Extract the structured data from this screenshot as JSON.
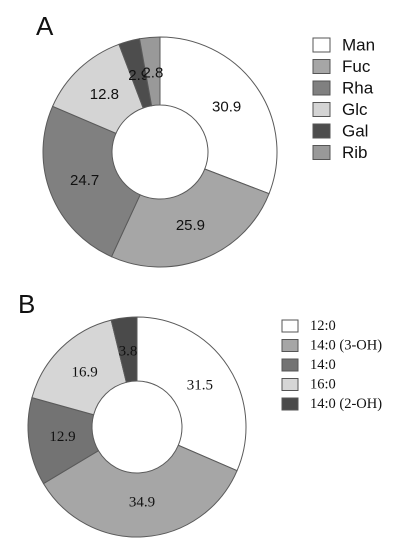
{
  "chart_data": [
    {
      "type": "donut",
      "panel": "A",
      "categories": [
        "Man",
        "Fuc",
        "Rha",
        "Glc",
        "Gal",
        "Rib"
      ],
      "values": [
        30.9,
        25.9,
        24.7,
        12.8,
        2.9,
        2.8
      ],
      "labels": [
        "30.9",
        "25.9",
        "24.7",
        "12.8",
        "2.9",
        "2.8"
      ],
      "colors": [
        "#ffffff",
        "#a6a6a6",
        "#808080",
        "#d4d4d4",
        "#4d4d4d",
        "#999999"
      ],
      "legend_position": "right",
      "title": "",
      "xlabel": "",
      "ylabel": ""
    },
    {
      "type": "donut",
      "panel": "B",
      "categories": [
        "12:0",
        "14:0 (3-OH)",
        "14:0",
        "16:0",
        "14:0 (2-OH)"
      ],
      "values": [
        31.5,
        34.9,
        12.9,
        16.9,
        3.8
      ],
      "labels": [
        "31.5",
        "34.9",
        "12.9",
        "16.9",
        "3.8"
      ],
      "colors": [
        "#ffffff",
        "#a6a6a6",
        "#737373",
        "#d6d6d6",
        "#4a4a4a"
      ],
      "legend_position": "right",
      "title": "",
      "xlabel": "",
      "ylabel": ""
    }
  ]
}
